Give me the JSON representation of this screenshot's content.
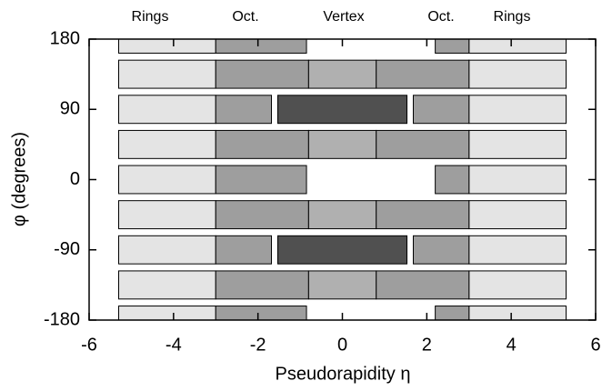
{
  "chart_data": {
    "type": "coverage",
    "annotations": [
      "Rings",
      "Oct.",
      "Vertex",
      "Oct.",
      "Rings"
    ],
    "xlabel": "Pseudorapidity η",
    "ylabel": "φ (degrees)",
    "xlim": [
      -6,
      6
    ],
    "ylim": [
      -180,
      180
    ],
    "xticks": [
      -6,
      -4,
      -2,
      0,
      2,
      4,
      6
    ],
    "yticks": [
      -180,
      -90,
      0,
      90,
      180
    ],
    "regions": [
      {
        "eta": [
          -5.3,
          -3
        ],
        "phi": [
          162,
          180
        ],
        "color": "#e4e4e4"
      },
      {
        "eta": [
          3,
          5.3
        ],
        "phi": [
          162,
          180
        ],
        "color": "#e4e4e4"
      },
      {
        "eta": [
          -5.3,
          -3
        ],
        "phi": [
          117,
          153
        ],
        "color": "#e4e4e4"
      },
      {
        "eta": [
          3,
          5.3
        ],
        "phi": [
          117,
          153
        ],
        "color": "#e4e4e4"
      },
      {
        "eta": [
          -5.3,
          -3
        ],
        "phi": [
          72,
          108
        ],
        "color": "#e4e4e4"
      },
      {
        "eta": [
          3,
          5.3
        ],
        "phi": [
          72,
          108
        ],
        "color": "#e4e4e4"
      },
      {
        "eta": [
          -5.3,
          -3
        ],
        "phi": [
          27,
          63
        ],
        "color": "#e4e4e4"
      },
      {
        "eta": [
          3,
          5.3
        ],
        "phi": [
          27,
          63
        ],
        "color": "#e4e4e4"
      },
      {
        "eta": [
          -5.3,
          -3
        ],
        "phi": [
          -18,
          18
        ],
        "color": "#e4e4e4"
      },
      {
        "eta": [
          3,
          5.3
        ],
        "phi": [
          -18,
          18
        ],
        "color": "#e4e4e4"
      },
      {
        "eta": [
          -5.3,
          -3
        ],
        "phi": [
          -63,
          -27
        ],
        "color": "#e4e4e4"
      },
      {
        "eta": [
          3,
          5.3
        ],
        "phi": [
          -63,
          -27
        ],
        "color": "#e4e4e4"
      },
      {
        "eta": [
          -5.3,
          -3
        ],
        "phi": [
          -108,
          -72
        ],
        "color": "#e4e4e4"
      },
      {
        "eta": [
          3,
          5.3
        ],
        "phi": [
          -108,
          -72
        ],
        "color": "#e4e4e4"
      },
      {
        "eta": [
          -5.3,
          -3
        ],
        "phi": [
          -153,
          -117
        ],
        "color": "#e4e4e4"
      },
      {
        "eta": [
          3,
          5.3
        ],
        "phi": [
          -153,
          -117
        ],
        "color": "#e4e4e4"
      },
      {
        "eta": [
          -5.3,
          -3
        ],
        "phi": [
          -180,
          -162
        ],
        "color": "#e4e4e4"
      },
      {
        "eta": [
          3,
          5.3
        ],
        "phi": [
          -180,
          -162
        ],
        "color": "#e4e4e4"
      },
      {
        "eta": [
          -3,
          -0.85
        ],
        "phi": [
          162,
          180
        ],
        "color": "#9e9e9e"
      },
      {
        "eta": [
          2.2,
          3
        ],
        "phi": [
          162,
          180
        ],
        "color": "#9e9e9e"
      },
      {
        "eta": [
          -3,
          -0.8
        ],
        "phi": [
          117,
          153
        ],
        "color": "#9e9e9e"
      },
      {
        "eta": [
          0.8,
          3
        ],
        "phi": [
          117,
          153
        ],
        "color": "#9e9e9e"
      },
      {
        "eta": [
          -3,
          -1.68
        ],
        "phi": [
          72,
          108
        ],
        "color": "#9e9e9e"
      },
      {
        "eta": [
          1.68,
          3
        ],
        "phi": [
          72,
          108
        ],
        "color": "#9e9e9e"
      },
      {
        "eta": [
          -3,
          -0.8
        ],
        "phi": [
          27,
          63
        ],
        "color": "#9e9e9e"
      },
      {
        "eta": [
          0.8,
          3
        ],
        "phi": [
          27,
          63
        ],
        "color": "#9e9e9e"
      },
      {
        "eta": [
          -3,
          -0.85
        ],
        "phi": [
          -18,
          18
        ],
        "color": "#9e9e9e"
      },
      {
        "eta": [
          2.2,
          3
        ],
        "phi": [
          -18,
          18
        ],
        "color": "#9e9e9e"
      },
      {
        "eta": [
          -3,
          -0.8
        ],
        "phi": [
          -63,
          -27
        ],
        "color": "#9e9e9e"
      },
      {
        "eta": [
          0.8,
          3
        ],
        "phi": [
          -63,
          -27
        ],
        "color": "#9e9e9e"
      },
      {
        "eta": [
          -3,
          -1.68
        ],
        "phi": [
          -108,
          -72
        ],
        "color": "#9e9e9e"
      },
      {
        "eta": [
          1.68,
          3
        ],
        "phi": [
          -108,
          -72
        ],
        "color": "#9e9e9e"
      },
      {
        "eta": [
          -3,
          -0.8
        ],
        "phi": [
          -153,
          -117
        ],
        "color": "#9e9e9e"
      },
      {
        "eta": [
          0.8,
          3
        ],
        "phi": [
          -153,
          -117
        ],
        "color": "#9e9e9e"
      },
      {
        "eta": [
          -3,
          -0.85
        ],
        "phi": [
          -180,
          -162
        ],
        "color": "#9e9e9e"
      },
      {
        "eta": [
          2.2,
          3
        ],
        "phi": [
          -180,
          -162
        ],
        "color": "#9e9e9e"
      },
      {
        "eta": [
          -0.8,
          0.8
        ],
        "phi": [
          117,
          153
        ],
        "color": "#b0b0b0"
      },
      {
        "eta": [
          -1.53,
          1.53
        ],
        "phi": [
          72,
          108
        ],
        "color": "#505050"
      },
      {
        "eta": [
          -0.8,
          0.8
        ],
        "phi": [
          27,
          63
        ],
        "color": "#b0b0b0"
      },
      {
        "eta": [
          -0.8,
          0.8
        ],
        "phi": [
          -63,
          -27
        ],
        "color": "#b0b0b0"
      },
      {
        "eta": [
          -1.53,
          1.53
        ],
        "phi": [
          -108,
          -72
        ],
        "color": "#505050"
      },
      {
        "eta": [
          -0.8,
          0.8
        ],
        "phi": [
          -153,
          -117
        ],
        "color": "#b0b0b0"
      }
    ]
  }
}
